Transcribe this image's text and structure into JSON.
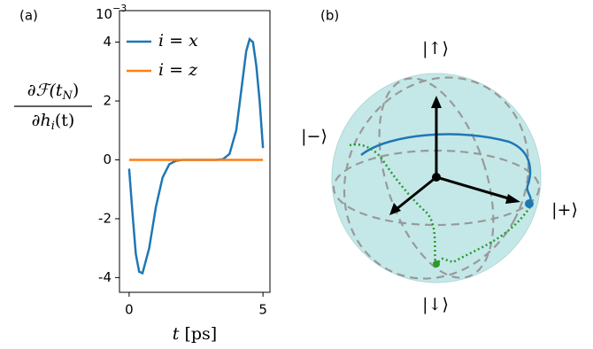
{
  "chart_data": {
    "type": "line",
    "panel_label": "(a)",
    "offset_label": {
      "base": "10",
      "exponent": "−3"
    },
    "ylabel": {
      "numerator": [
        "∂ℱ(t",
        "N",
        ")"
      ],
      "denominator": [
        "∂h",
        "i",
        "(t)"
      ]
    },
    "xlabel": [
      "t",
      "[ps]"
    ],
    "x": [
      0,
      0.125,
      0.25,
      0.375,
      0.5,
      0.75,
      1.0,
      1.25,
      1.5,
      1.75,
      2.0,
      2.5,
      3.0,
      3.25,
      3.5,
      3.75,
      4.0,
      4.25,
      4.375,
      4.5,
      4.625,
      4.75,
      4.875,
      5.0
    ],
    "series": [
      {
        "name": "i = x",
        "color": "#1f77b4",
        "values": [
          -0.3,
          -1.8,
          -3.2,
          -3.8,
          -3.85,
          -3.0,
          -1.6,
          -0.6,
          -0.15,
          -0.03,
          0,
          0,
          0,
          0,
          0.02,
          0.2,
          1.0,
          2.8,
          3.7,
          4.1,
          4.0,
          3.2,
          2.0,
          0.4
        ]
      },
      {
        "name": "i = z",
        "color": "#ff7f0e",
        "values": [
          0,
          0,
          0,
          0,
          0,
          0,
          0,
          0,
          0,
          0,
          0,
          0,
          0,
          0,
          0,
          0,
          0,
          0,
          0,
          0,
          0,
          0,
          0,
          0
        ]
      }
    ],
    "xlim": [
      -0.36,
      5.26
    ],
    "ylim": [
      -4.5,
      5.07
    ],
    "xticks": [
      0,
      5
    ],
    "yticks": [
      -4,
      -2,
      0,
      2,
      4
    ],
    "legend": "upper left"
  },
  "bloch": {
    "panel_label": "(b)",
    "up": "|↑⟩",
    "down": "|↓⟩",
    "minus": "|−⟩",
    "plus": "|+⟩"
  }
}
